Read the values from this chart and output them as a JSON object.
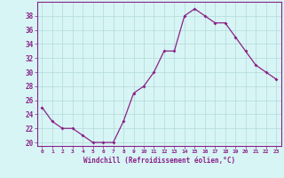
{
  "x": [
    0,
    1,
    2,
    3,
    4,
    5,
    6,
    7,
    8,
    9,
    10,
    11,
    12,
    13,
    14,
    15,
    16,
    17,
    18,
    19,
    20,
    21,
    22,
    23
  ],
  "y": [
    25,
    23,
    22,
    22,
    21,
    20,
    20,
    20,
    23,
    27,
    28,
    30,
    33,
    33,
    38,
    39,
    38,
    37,
    37,
    35,
    33,
    31,
    30,
    29
  ],
  "line_color": "#882288",
  "marker": "D",
  "marker_size": 2.0,
  "bg_color": "#d8f5f5",
  "grid_color": "#b8dede",
  "xlabel": "Windchill (Refroidissement éolien,°C)",
  "xlabel_color": "#882288",
  "tick_color": "#882288",
  "spine_color": "#882288",
  "ylim": [
    19.5,
    40
  ],
  "xlim": [
    -0.5,
    23.5
  ],
  "yticks": [
    20,
    22,
    24,
    26,
    28,
    30,
    32,
    34,
    36,
    38
  ],
  "xticks": [
    0,
    1,
    2,
    3,
    4,
    5,
    6,
    7,
    8,
    9,
    10,
    11,
    12,
    13,
    14,
    15,
    16,
    17,
    18,
    19,
    20,
    21,
    22,
    23
  ],
  "xtick_labels": [
    "0",
    "1",
    "2",
    "3",
    "4",
    "5",
    "6",
    "7",
    "8",
    "9",
    "10",
    "11",
    "12",
    "13",
    "14",
    "15",
    "16",
    "17",
    "18",
    "19",
    "20",
    "21",
    "22",
    "23"
  ]
}
